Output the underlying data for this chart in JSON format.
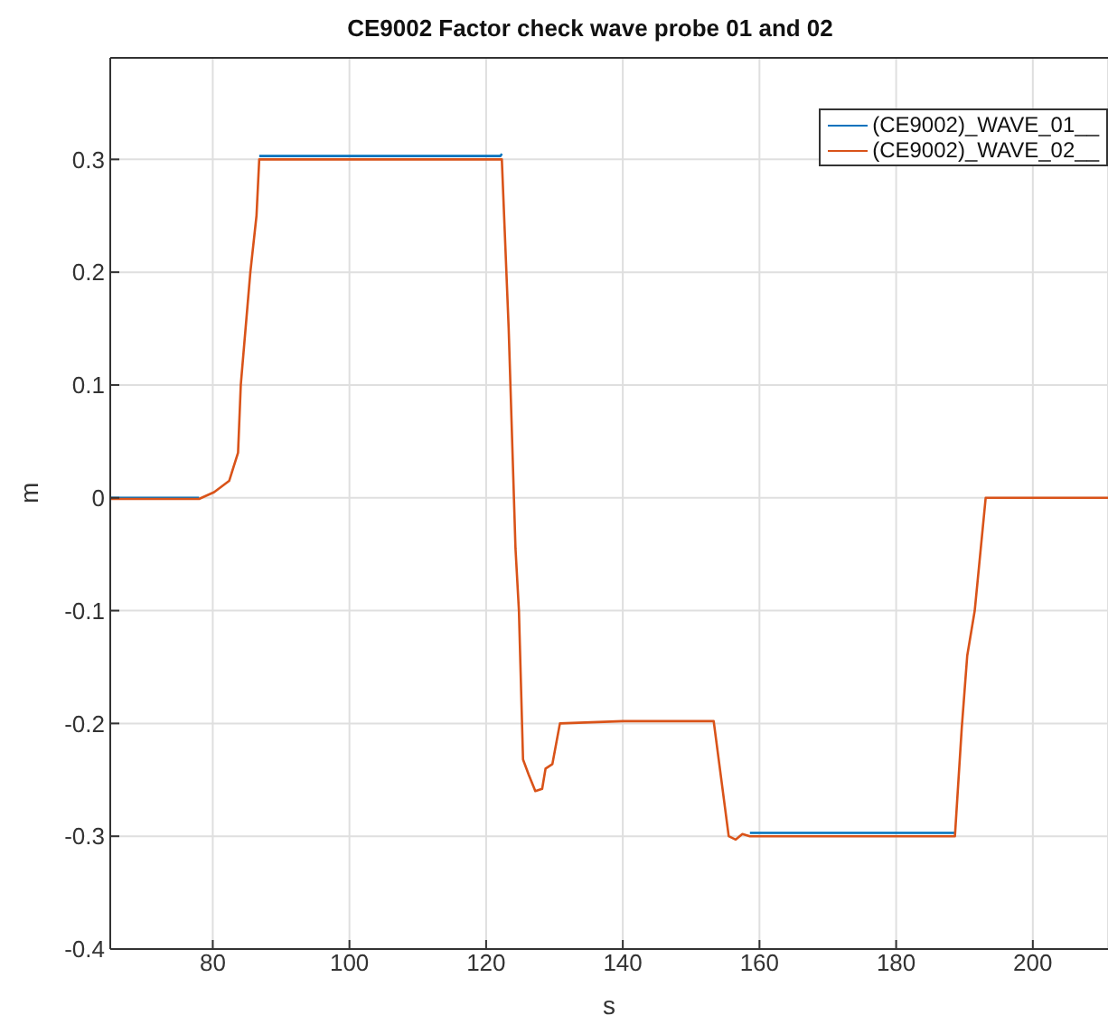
{
  "chart_data": {
    "type": "line",
    "title": "CE9002 Factor check wave probe 01 and 02",
    "xlabel": "s",
    "ylabel": "m",
    "xlim": [
      65,
      211
    ],
    "xticks": [
      80,
      100,
      120,
      140,
      160,
      180,
      200
    ],
    "ylim": [
      -0.4,
      0.39
    ],
    "yticks": [
      -0.4,
      -0.3,
      -0.2,
      -0.1,
      0,
      0.1,
      0.2,
      0.3
    ],
    "grid": true,
    "legend": "top right",
    "marker": "none",
    "line_style": "solid",
    "series": [
      {
        "name": "(CE9002)_WAVE_01__",
        "color": "#0072bd",
        "x": [
          65,
          78,
          80.2,
          82.4,
          83.7,
          84.1,
          85.5,
          86.4,
          86.8,
          100,
          122.1,
          122.3,
          123.3,
          124.3,
          124.8,
          125.4,
          126.2,
          127.2,
          128.2,
          128.7,
          129.7,
          130.8,
          140,
          153.3,
          155.5,
          156.5,
          157.5,
          158.6,
          170,
          188.6
        ],
        "values": [
          0,
          0,
          null,
          null,
          null,
          null,
          null,
          null,
          0.303,
          0.303,
          0.303,
          0.305,
          null,
          null,
          null,
          null,
          null,
          null,
          null,
          null,
          null,
          null,
          null,
          null,
          null,
          null,
          null,
          -0.297,
          -0.297,
          -0.297
        ]
      },
      {
        "name": "(CE9002)_WAVE_02__",
        "color": "#d95319",
        "x": [
          65,
          78,
          80.2,
          82.4,
          83.7,
          84.1,
          85.5,
          86.4,
          86.8,
          100,
          122.1,
          122.3,
          123.3,
          124.3,
          124.8,
          125.4,
          126.2,
          127.2,
          128.2,
          128.7,
          129.7,
          130.8,
          140,
          153.3,
          155.5,
          156.5,
          157.5,
          158.6,
          170,
          188.6,
          189.6,
          190.4,
          191.5,
          193.1,
          200,
          211
        ],
        "values": [
          -0.001,
          -0.001,
          0.005,
          0.015,
          0.04,
          0.1,
          0.2,
          0.25,
          0.3,
          0.3,
          0.3,
          0.3,
          0.15,
          -0.045,
          -0.1,
          -0.232,
          -0.245,
          -0.26,
          -0.258,
          -0.24,
          -0.236,
          -0.2,
          -0.198,
          -0.198,
          -0.3,
          -0.303,
          -0.298,
          -0.3,
          -0.3,
          -0.3,
          -0.204,
          -0.14,
          -0.1,
          0,
          0,
          0
        ]
      }
    ]
  }
}
